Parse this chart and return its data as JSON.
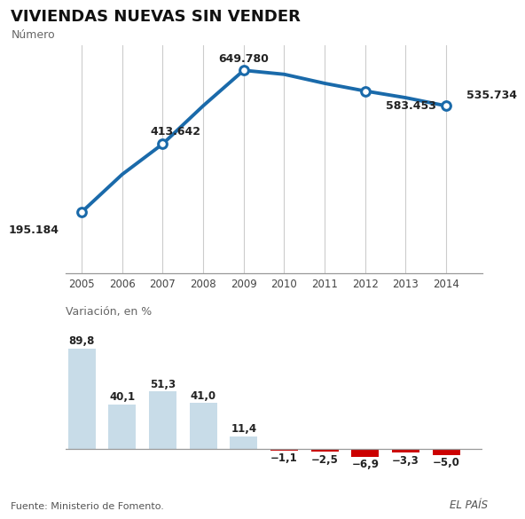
{
  "title": "VIVIENDAS NUEVAS SIN VENDER",
  "subtitle_line": "Número",
  "years": [
    2005,
    2006,
    2007,
    2008,
    2009,
    2010,
    2011,
    2012,
    2013,
    2014
  ],
  "line_values": [
    195184,
    316000,
    413642,
    536000,
    649780,
    637000,
    608000,
    583453,
    562000,
    535734
  ],
  "labeled_indices": [
    0,
    2,
    4,
    7,
    9
  ],
  "label_texts": [
    "195.184",
    "413.642",
    "649.780",
    "583.453",
    "535.734"
  ],
  "bar_values": [
    89.8,
    40.1,
    51.3,
    41.0,
    11.4,
    -1.1,
    -2.5,
    -6.9,
    -3.3,
    -5.0
  ],
  "bar_labels": [
    "89,8",
    "40,1",
    "51,3",
    "41,0",
    "11,4",
    "−1,1",
    "−2,5",
    "−6,9",
    "−3,3",
    "−5,0"
  ],
  "bar_x": [
    2005,
    2006,
    2007,
    2008,
    2009,
    2010,
    2011,
    2012,
    2013,
    2014
  ],
  "positive_color": "#c8dce8",
  "negative_color": "#cc0000",
  "line_color": "#1a6aaa",
  "line_marker_fill": "#ffffff",
  "line_marker_edge": "#1a6aaa",
  "vline_color": "#cccccc",
  "title_fontsize": 13,
  "label_fontsize": 9,
  "source_text": "Fuente: Ministerio de Fomento.",
  "brand_text": "EL PAÍS",
  "variation_label": "Variación, en %",
  "background_color": "#ffffff"
}
